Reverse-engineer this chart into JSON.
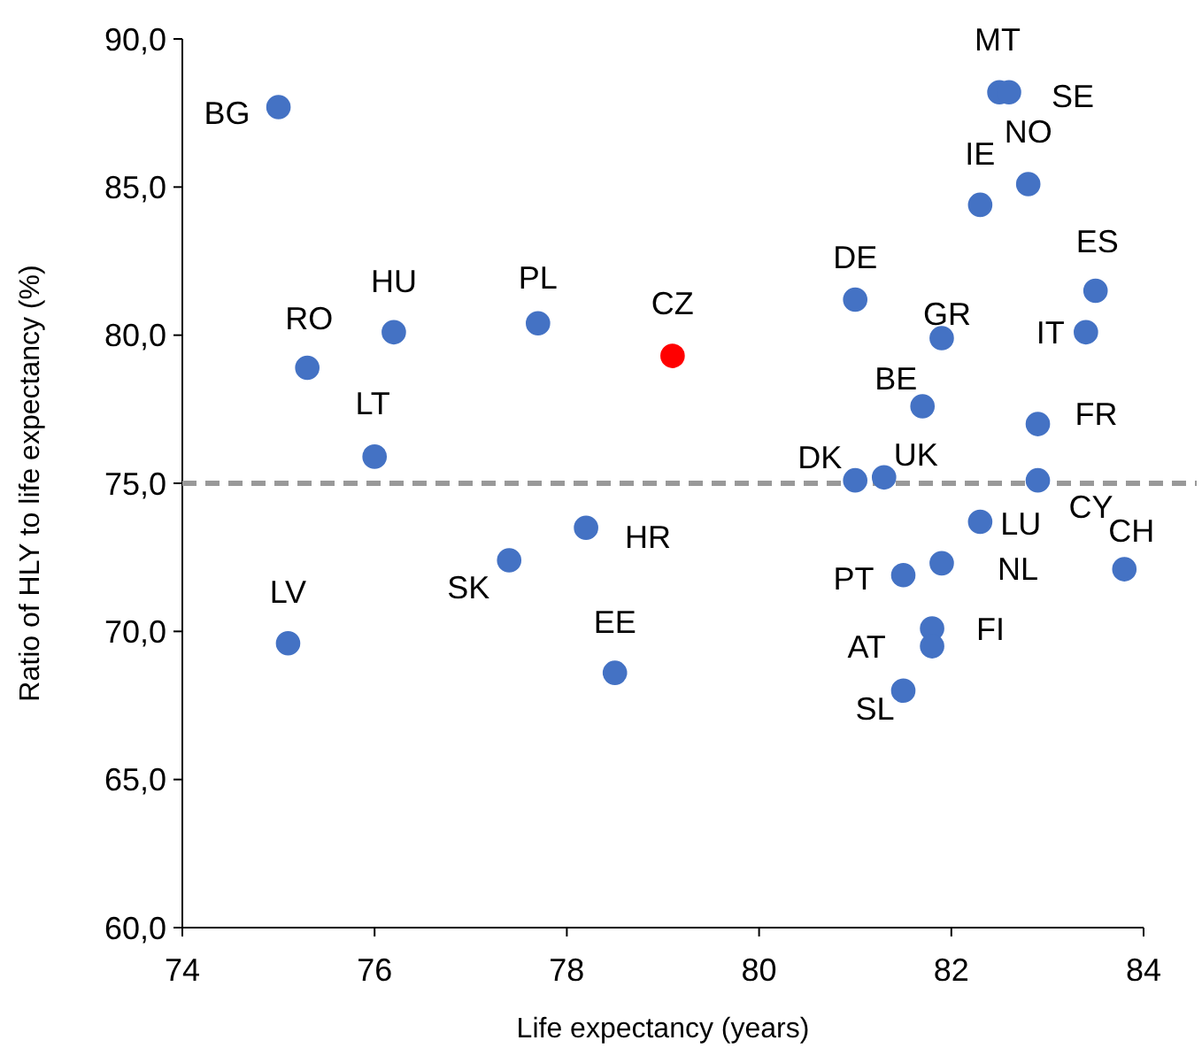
{
  "chart_data": {
    "type": "scatter",
    "xlabel": "Life expectancy (years)",
    "ylabel": "Ratio of HLY to life expectancy (%)",
    "xlim": [
      74,
      84
    ],
    "xticks": [
      74,
      76,
      78,
      80,
      82,
      84
    ],
    "ylim": [
      60,
      90
    ],
    "yticks": [
      {
        "value": 60,
        "label": "60,0"
      },
      {
        "value": 65,
        "label": "65,0"
      },
      {
        "value": 70,
        "label": "70,0"
      },
      {
        "value": 75,
        "label": "75,0"
      },
      {
        "value": 80,
        "label": "80,0"
      },
      {
        "value": 85,
        "label": "85,0"
      },
      {
        "value": 90,
        "label": "90,0"
      }
    ],
    "grid": false,
    "marker": "circle",
    "x": [
      75.0,
      75.3,
      76.2,
      76.0,
      75.1,
      77.7,
      79.1,
      77.4,
      78.2,
      78.5,
      81.0,
      81.0,
      81.3,
      81.7,
      81.9,
      81.5,
      81.9,
      81.8,
      81.8,
      81.5,
      82.3,
      82.5,
      82.6,
      82.8,
      82.3,
      83.5,
      83.4,
      82.9,
      82.9,
      83.8
    ],
    "values": [
      87.7,
      78.9,
      80.1,
      75.9,
      69.6,
      80.4,
      79.3,
      72.4,
      73.5,
      68.6,
      81.2,
      75.1,
      75.2,
      77.6,
      79.9,
      71.9,
      72.3,
      70.1,
      69.5,
      68.0,
      84.4,
      88.2,
      88.2,
      85.1,
      73.7,
      81.5,
      80.1,
      77.0,
      75.1,
      72.1
    ],
    "colors": [
      "#4472c4",
      "#4472c4",
      "#4472c4",
      "#4472c4",
      "#4472c4",
      "#4472c4",
      "#ff0000",
      "#4472c4",
      "#4472c4",
      "#4472c4",
      "#4472c4",
      "#4472c4",
      "#4472c4",
      "#4472c4",
      "#4472c4",
      "#4472c4",
      "#4472c4",
      "#4472c4",
      "#4472c4",
      "#4472c4",
      "#4472c4",
      "#4472c4",
      "#4472c4",
      "#4472c4",
      "#4472c4",
      "#4472c4",
      "#4472c4",
      "#4472c4",
      "#4472c4",
      "#4472c4"
    ],
    "ref_lines": [
      {
        "axis": "y",
        "value": 75,
        "color": "#999999",
        "line_style": "dashed"
      }
    ],
    "annotations": [
      {
        "text": "BG",
        "x": 75.0,
        "y": 87.7
      },
      {
        "text": "RO",
        "x": 75.3,
        "y": 78.9
      },
      {
        "text": "HU",
        "x": 76.2,
        "y": 80.1
      },
      {
        "text": "LT",
        "x": 76.0,
        "y": 75.9
      },
      {
        "text": "LV",
        "x": 75.1,
        "y": 69.6
      },
      {
        "text": "PL",
        "x": 77.7,
        "y": 80.4
      },
      {
        "text": "CZ",
        "x": 79.1,
        "y": 79.3
      },
      {
        "text": "SK",
        "x": 77.4,
        "y": 72.4
      },
      {
        "text": "HR",
        "x": 78.2,
        "y": 73.5
      },
      {
        "text": "EE",
        "x": 78.5,
        "y": 68.6
      },
      {
        "text": "DE",
        "x": 81.0,
        "y": 81.2
      },
      {
        "text": "DK",
        "x": 81.0,
        "y": 75.1
      },
      {
        "text": "UK",
        "x": 81.3,
        "y": 75.2
      },
      {
        "text": "BE",
        "x": 81.7,
        "y": 77.6
      },
      {
        "text": "GR",
        "x": 81.9,
        "y": 79.9
      },
      {
        "text": "PT",
        "x": 81.5,
        "y": 71.9
      },
      {
        "text": "NL",
        "x": 81.9,
        "y": 72.3
      },
      {
        "text": "AT",
        "x": 81.8,
        "y": 70.1
      },
      {
        "text": "FI",
        "x": 81.8,
        "y": 69.5
      },
      {
        "text": "SL",
        "x": 81.5,
        "y": 68.0
      },
      {
        "text": "IE",
        "x": 82.3,
        "y": 84.4
      },
      {
        "text": "MT",
        "x": 82.5,
        "y": 88.2
      },
      {
        "text": "SE",
        "x": 82.6,
        "y": 88.2
      },
      {
        "text": "NO",
        "x": 82.8,
        "y": 85.1
      },
      {
        "text": "LU",
        "x": 82.3,
        "y": 73.7
      },
      {
        "text": "ES",
        "x": 83.5,
        "y": 81.5
      },
      {
        "text": "IT",
        "x": 83.4,
        "y": 80.1
      },
      {
        "text": "FR",
        "x": 82.9,
        "y": 77.0
      },
      {
        "text": "CY",
        "x": 82.9,
        "y": 75.1
      },
      {
        "text": "CH",
        "x": 83.8,
        "y": 72.1
      }
    ]
  }
}
